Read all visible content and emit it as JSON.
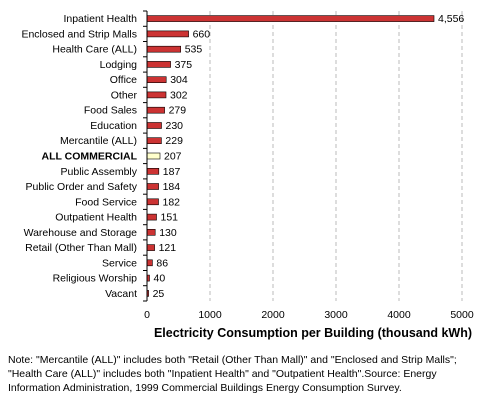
{
  "chart_data": {
    "type": "bar",
    "orientation": "horizontal",
    "categories": [
      "Inpatient Health",
      "Enclosed and Strip Malls",
      "Health Care (ALL)",
      "Lodging",
      "Office",
      "Other",
      "Food Sales",
      "Education",
      "Mercantile (ALL)",
      "ALL COMMERCIAL",
      "Public Assembly",
      "Public Order and Safety",
      "Food Service",
      "Outpatient Health",
      "Warehouse and Storage",
      "Retail (Other Than Mall)",
      "Service",
      "Religious Worship",
      "Vacant"
    ],
    "values": [
      4556,
      660,
      535,
      375,
      304,
      302,
      279,
      230,
      229,
      207,
      187,
      184,
      182,
      151,
      130,
      121,
      86,
      40,
      25
    ],
    "data_labels": [
      "4,556",
      "660",
      "535",
      "375",
      "304",
      "302",
      "279",
      "230",
      "229",
      "207",
      "187",
      "184",
      "182",
      "151",
      "130",
      "121",
      "86",
      "40",
      "25"
    ],
    "highlight_category": "ALL COMMERCIAL",
    "xlabel": "Electricity Consumption per Building (thousand kWh)",
    "ylabel": "",
    "xlim": [
      0,
      5000
    ],
    "xticks": [
      0,
      1000,
      2000,
      3000,
      4000,
      5000
    ],
    "xtick_labels": [
      "0",
      "1000",
      "2000",
      "3000",
      "4000",
      "5000"
    ],
    "grid": "vertical dashed",
    "legend": "none",
    "colors": {
      "bar": "#cc3333",
      "highlight_bar": "#ffffcc",
      "bar_edge": "#000000",
      "grid": "#bbbbbb"
    }
  },
  "note": "Note: \"Mercantile (ALL)\" includes both \"Retail (Other Than Mall)\" and \"Enclosed and Strip Malls\"; \"Health Care (ALL)\" includes both \"Inpatient Health\" and \"Outpatient Health\".Source: Energy Information Administration, 1999 Commercial Buildings Energy Consumption Survey."
}
